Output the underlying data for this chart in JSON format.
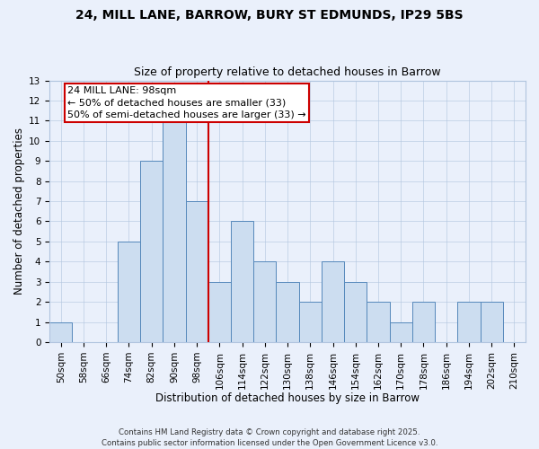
{
  "title": "24, MILL LANE, BARROW, BURY ST EDMUNDS, IP29 5BS",
  "subtitle": "Size of property relative to detached houses in Barrow",
  "xlabel": "Distribution of detached houses by size in Barrow",
  "ylabel": "Number of detached properties",
  "bin_labels": [
    "50sqm",
    "58sqm",
    "66sqm",
    "74sqm",
    "82sqm",
    "90sqm",
    "98sqm",
    "106sqm",
    "114sqm",
    "122sqm",
    "130sqm",
    "138sqm",
    "146sqm",
    "154sqm",
    "162sqm",
    "170sqm",
    "178sqm",
    "186sqm",
    "194sqm",
    "202sqm",
    "210sqm"
  ],
  "bar_values": [
    1,
    0,
    0,
    5,
    9,
    11,
    7,
    3,
    6,
    4,
    3,
    2,
    4,
    3,
    2,
    1,
    2,
    0,
    2,
    2,
    0
  ],
  "bar_color": "#ccddf0",
  "bar_edge_color": "#5588bb",
  "annotation_text": "24 MILL LANE: 98sqm\n← 50% of detached houses are smaller (33)\n50% of semi-detached houses are larger (33) →",
  "annotation_box_color": "#ffffff",
  "annotation_box_edge": "#cc0000",
  "vline_color": "#cc0000",
  "ylim": [
    0,
    13
  ],
  "yticks": [
    0,
    1,
    2,
    3,
    4,
    5,
    6,
    7,
    8,
    9,
    10,
    11,
    12,
    13
  ],
  "bg_color": "#eaf0fb",
  "grid_color": "#b0c4de",
  "footer1": "Contains HM Land Registry data © Crown copyright and database right 2025.",
  "footer2": "Contains public sector information licensed under the Open Government Licence v3.0.",
  "title_fontsize": 10,
  "subtitle_fontsize": 9,
  "axis_label_fontsize": 8.5,
  "tick_fontsize": 7.5,
  "annotation_fontsize": 8,
  "red_line_index": 6
}
